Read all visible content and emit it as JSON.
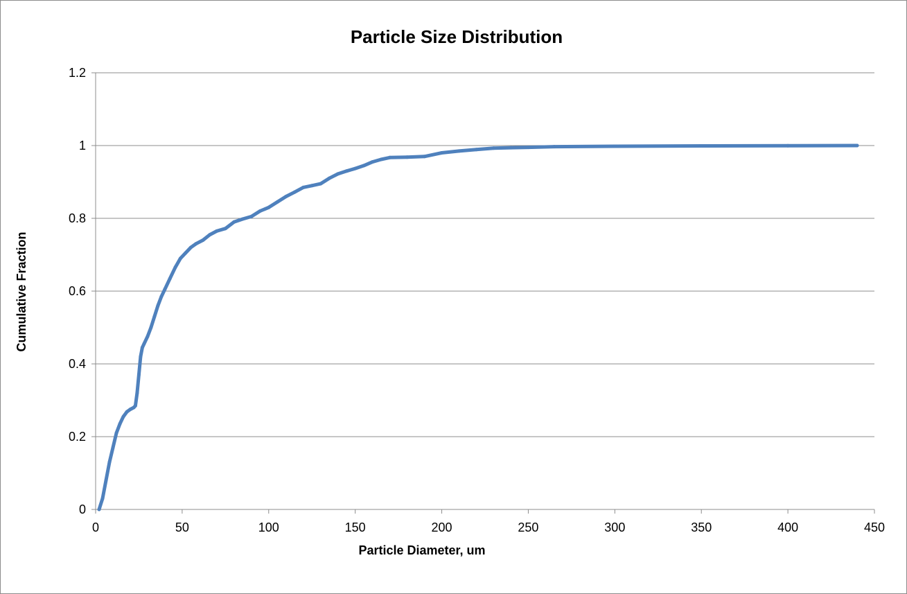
{
  "chart_data": {
    "type": "line",
    "title": "Particle Size Distribution",
    "xlabel": "Particle Diameter, um",
    "ylabel": "Cumulative Fraction",
    "xlim": [
      0,
      450
    ],
    "ylim": [
      0,
      1.2
    ],
    "x_ticks": [
      "0",
      "50",
      "100",
      "150",
      "200",
      "250",
      "300",
      "350",
      "400",
      "450"
    ],
    "y_ticks": [
      "0",
      "0.2",
      "0.4",
      "0.6",
      "0.8",
      "1",
      "1.2"
    ],
    "grid": "horizontal",
    "legend": "none",
    "series": [
      {
        "color": "#4f81bd",
        "points": [
          [
            2,
            0
          ],
          [
            4,
            0.03
          ],
          [
            6,
            0.08
          ],
          [
            8,
            0.13
          ],
          [
            10,
            0.17
          ],
          [
            12,
            0.21
          ],
          [
            14,
            0.235
          ],
          [
            16,
            0.255
          ],
          [
            18,
            0.268
          ],
          [
            20,
            0.275
          ],
          [
            22,
            0.28
          ],
          [
            23,
            0.285
          ],
          [
            24,
            0.32
          ],
          [
            25,
            0.37
          ],
          [
            26,
            0.42
          ],
          [
            27,
            0.445
          ],
          [
            28,
            0.455
          ],
          [
            30,
            0.475
          ],
          [
            32,
            0.5
          ],
          [
            34,
            0.53
          ],
          [
            36,
            0.56
          ],
          [
            38,
            0.585
          ],
          [
            40,
            0.605
          ],
          [
            43,
            0.635
          ],
          [
            46,
            0.665
          ],
          [
            49,
            0.69
          ],
          [
            52,
            0.705
          ],
          [
            55,
            0.72
          ],
          [
            58,
            0.73
          ],
          [
            62,
            0.74
          ],
          [
            66,
            0.755
          ],
          [
            70,
            0.765
          ],
          [
            75,
            0.772
          ],
          [
            80,
            0.79
          ],
          [
            85,
            0.798
          ],
          [
            90,
            0.805
          ],
          [
            95,
            0.82
          ],
          [
            100,
            0.83
          ],
          [
            105,
            0.845
          ],
          [
            110,
            0.86
          ],
          [
            115,
            0.872
          ],
          [
            120,
            0.885
          ],
          [
            125,
            0.89
          ],
          [
            130,
            0.895
          ],
          [
            135,
            0.91
          ],
          [
            140,
            0.922
          ],
          [
            145,
            0.93
          ],
          [
            150,
            0.937
          ],
          [
            155,
            0.945
          ],
          [
            160,
            0.955
          ],
          [
            165,
            0.962
          ],
          [
            170,
            0.967
          ],
          [
            180,
            0.968
          ],
          [
            190,
            0.97
          ],
          [
            200,
            0.98
          ],
          [
            210,
            0.985
          ],
          [
            220,
            0.989
          ],
          [
            230,
            0.993
          ],
          [
            240,
            0.994
          ],
          [
            250,
            0.995
          ],
          [
            265,
            0.997
          ],
          [
            300,
            0.998
          ],
          [
            350,
            0.999
          ],
          [
            400,
            0.9995
          ],
          [
            440,
            1.0
          ]
        ]
      }
    ]
  }
}
